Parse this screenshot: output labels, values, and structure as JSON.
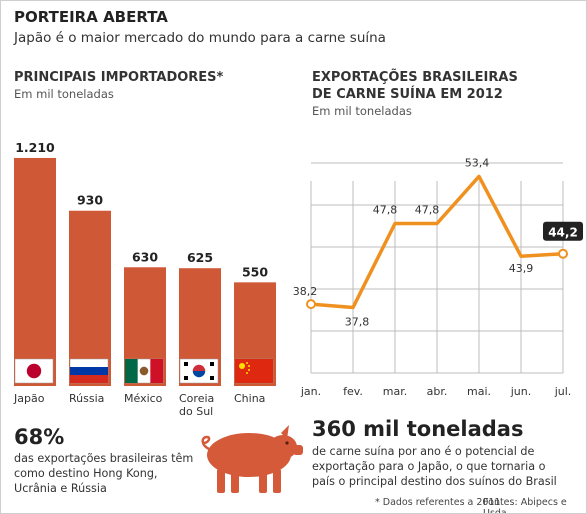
{
  "header": {
    "title": "PORTEIRA ABERTA",
    "subtitle": "Japão é o maior mercado do mundo para a carne suína"
  },
  "left_chart": {
    "title": "PRINCIPAIS IMPORTADORES*",
    "unit": "Em mil toneladas"
  },
  "right_chart": {
    "title_line1": "EXPORTAÇÕES BRASILEIRAS",
    "title_line2": "DE CARNE SUÍNA EM 2012",
    "unit": "Em mil toneladas"
  },
  "stat_left": {
    "value": "68%",
    "text_lines": [
      "das exportações brasileiras têm",
      "como destino Hong Kong,",
      "Ucrânia e Rússia"
    ]
  },
  "stat_right": {
    "value": "360 mil toneladas",
    "text_lines": [
      "de carne suína por ano é o potencial de",
      "exportação para o Japão, o que tornaria o",
      "país o principal destino dos suínos do Brasil"
    ]
  },
  "footer": {
    "note": "* Dados referentes a 2011",
    "sources": "Fontes: Abipecs e Usda"
  },
  "colors": {
    "bar": "#cf5836",
    "line": "#f0901e",
    "grid": "#bdbdbd",
    "pig": "#d45a3a",
    "text": "#333333"
  },
  "chart_data": [
    {
      "type": "bar",
      "title": "PRINCIPAIS IMPORTADORES*",
      "ylabel": "Em mil toneladas",
      "categories": [
        "Japão",
        "Rússia",
        "México",
        "Coreia do Sul",
        "China"
      ],
      "category_lines": [
        [
          "Japão"
        ],
        [
          "Rússia"
        ],
        [
          "México"
        ],
        [
          "Coreia",
          "do Sul"
        ],
        [
          "China"
        ]
      ],
      "values": [
        1210,
        930,
        630,
        625,
        550
      ],
      "value_labels": [
        "1.210",
        "930",
        "630",
        "625",
        "550"
      ],
      "flags": [
        "japan",
        "russia",
        "mexico",
        "south-korea",
        "china"
      ]
    },
    {
      "type": "line",
      "title": "EXPORTAÇÕES BRASILEIRAS DE CARNE SUÍNA EM 2012",
      "ylabel": "Em mil toneladas",
      "x": [
        "jan.",
        "fev.",
        "mar.",
        "abr.",
        "mai.",
        "jun.",
        "jul."
      ],
      "values": [
        38.2,
        37.8,
        47.8,
        47.8,
        53.4,
        43.9,
        44.2
      ],
      "value_labels": [
        "38,2",
        "37,8",
        "47,8",
        "47,8",
        "53,4",
        "43,9",
        "44,2"
      ],
      "highlight_last": true,
      "grid": true
    }
  ]
}
